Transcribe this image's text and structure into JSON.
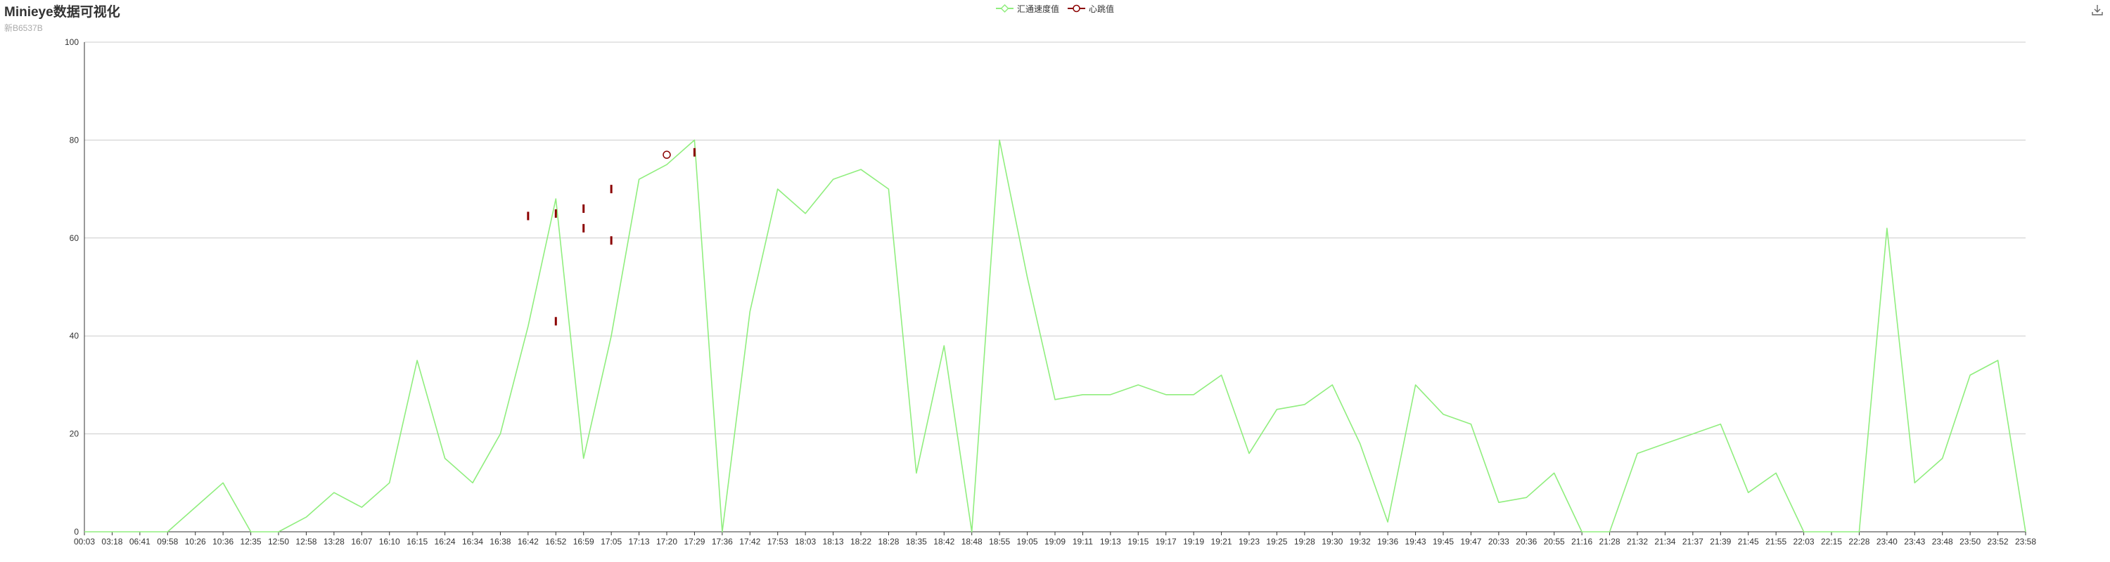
{
  "chart_data": {
    "type": "line",
    "title": "Minieye数据可视化",
    "subtitle": "新B6537B",
    "xlabel": "",
    "ylabel": "",
    "ylim": [
      0,
      100
    ],
    "yticks": [
      0,
      20,
      40,
      60,
      80,
      100
    ],
    "grid": true,
    "legend_position": "top-center",
    "categories": [
      "00:03",
      "03:18",
      "06:41",
      "09:58",
      "10:26",
      "10:36",
      "12:35",
      "12:50",
      "12:58",
      "13:28",
      "16:07",
      "16:10",
      "16:15",
      "16:24",
      "16:34",
      "16:38",
      "16:42",
      "16:52",
      "16:59",
      "17:05",
      "17:13",
      "17:20",
      "17:29",
      "17:36",
      "17:42",
      "17:53",
      "18:03",
      "18:13",
      "18:22",
      "18:28",
      "18:35",
      "18:42",
      "18:48",
      "18:55",
      "19:05",
      "19:09",
      "19:11",
      "19:13",
      "19:15",
      "19:17",
      "19:19",
      "19:21",
      "19:23",
      "19:25",
      "19:28",
      "19:30",
      "19:32",
      "19:36",
      "19:43",
      "19:45",
      "19:47",
      "20:33",
      "20:36",
      "20:55",
      "21:16",
      "21:28",
      "21:32",
      "21:34",
      "21:37",
      "21:39",
      "21:45",
      "21:55",
      "22:03",
      "22:15",
      "22:28",
      "23:40",
      "23:43",
      "23:48",
      "23:50",
      "23:52",
      "23:58"
    ],
    "series": [
      {
        "name": "汇通速度值",
        "color": "#90ee7e",
        "values": [
          0,
          0,
          0,
          0,
          5,
          10,
          0,
          0,
          3,
          8,
          5,
          10,
          35,
          15,
          10,
          20,
          42,
          68,
          15,
          40,
          72,
          75,
          80,
          0,
          45,
          70,
          65,
          72,
          74,
          70,
          12,
          38,
          0,
          80,
          52,
          27,
          28,
          28,
          30,
          28,
          28,
          32,
          16,
          25,
          26,
          30,
          18,
          2,
          30,
          24,
          22,
          6,
          7,
          12,
          0,
          0,
          16,
          18,
          20,
          22,
          8,
          12,
          0,
          0,
          0,
          62,
          10,
          15,
          32,
          35,
          0
        ]
      },
      {
        "name": "心跳值",
        "color": "#8b0000",
        "points": [
          {
            "x": "16:42",
            "y": 64.5
          },
          {
            "x": "16:52",
            "y": 43
          },
          {
            "x": "16:52",
            "y": 65
          },
          {
            "x": "16:59",
            "y": 66
          },
          {
            "x": "16:59",
            "y": 62
          },
          {
            "x": "17:05",
            "y": 59.5
          },
          {
            "x": "17:05",
            "y": 70
          },
          {
            "x": "17:20",
            "y": 77
          },
          {
            "x": "17:29",
            "y": 77.5
          }
        ]
      }
    ]
  },
  "toolbar": {
    "download_icon": "download-icon"
  }
}
